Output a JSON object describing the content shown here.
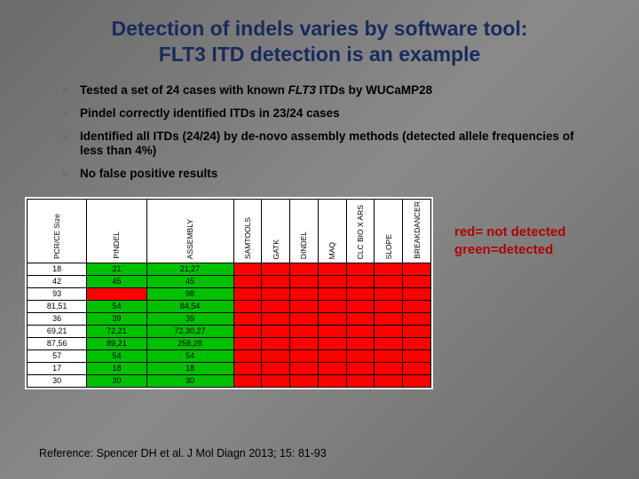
{
  "title_line1": "Detection of indels varies by software tool:",
  "title_line2": "FLT3 ITD detection is an example",
  "bullets": [
    {
      "pre": "Tested a set of 24 cases with known ",
      "it": "FLT3",
      "post": " ITDs by WUCaMP28"
    },
    {
      "pre": "Pindel correctly identified ITDs in 23/24 cases",
      "it": "",
      "post": ""
    },
    {
      "pre": "Identified all ITDs (24/24) by de-novo assembly methods (detected allele frequencies of less than 4%)",
      "it": "",
      "post": ""
    },
    {
      "pre": "No false positive results",
      "it": "",
      "post": ""
    }
  ],
  "table": {
    "headers": [
      "PCR/CE Size",
      "PINDEL",
      "ASSEMBLY",
      "SAMTOOLS",
      "GATK",
      "DINDEL",
      "MAQ",
      "CLC BIO X ARS",
      "SLOPE",
      "BREAKDANCER"
    ],
    "colors": {
      "green": "#00c000",
      "red": "#ff0000",
      "white": "#ffffff"
    },
    "rows": [
      {
        "cells": [
          "18",
          "21",
          "21,27",
          "",
          "",
          "",
          "",
          "",
          "",
          ""
        ],
        "cls": [
          "w",
          "g",
          "g",
          "r",
          "r",
          "r",
          "r",
          "r",
          "r",
          "r"
        ]
      },
      {
        "cells": [
          "42",
          "45",
          "45",
          "",
          "",
          "",
          "",
          "",
          "",
          ""
        ],
        "cls": [
          "w",
          "g",
          "g",
          "r",
          "r",
          "r",
          "r",
          "r",
          "r",
          "r"
        ]
      },
      {
        "cells": [
          "93",
          "",
          "98",
          "",
          "",
          "",
          "",
          "",
          "",
          ""
        ],
        "cls": [
          "w",
          "r",
          "g",
          "r",
          "r",
          "r",
          "r",
          "r",
          "r",
          "r"
        ]
      },
      {
        "cells": [
          "81,51",
          "54",
          "84,54",
          "",
          "",
          "",
          "",
          "",
          "",
          ""
        ],
        "cls": [
          "w",
          "g",
          "g",
          "r",
          "r",
          "r",
          "r",
          "r",
          "r",
          "r"
        ]
      },
      {
        "cells": [
          "36",
          "39",
          "39",
          "",
          "",
          "",
          "",
          "",
          "",
          ""
        ],
        "cls": [
          "w",
          "g",
          "g",
          "r",
          "r",
          "r",
          "r",
          "r",
          "r",
          "r"
        ]
      },
      {
        "cells": [
          "69,21",
          "72,21",
          "72,30,27",
          "",
          "",
          "",
          "",
          "",
          "",
          ""
        ],
        "cls": [
          "w",
          "g",
          "g",
          "r",
          "r",
          "r",
          "r",
          "r",
          "r",
          "r"
        ]
      },
      {
        "cells": [
          "87,56",
          "89,21",
          "258,28",
          "",
          "",
          "",
          "",
          "",
          "",
          ""
        ],
        "cls": [
          "w",
          "g",
          "g",
          "r",
          "r",
          "r",
          "r",
          "r",
          "r",
          "r"
        ]
      },
      {
        "cells": [
          "57",
          "54",
          "54",
          "",
          "",
          "",
          "",
          "",
          "",
          ""
        ],
        "cls": [
          "w",
          "g",
          "g",
          "r",
          "r",
          "r",
          "r",
          "r",
          "r",
          "r"
        ]
      },
      {
        "cells": [
          "17",
          "18",
          "18",
          "",
          "",
          "",
          "",
          "",
          "",
          ""
        ],
        "cls": [
          "w",
          "g",
          "g",
          "r",
          "r",
          "r",
          "r",
          "r",
          "r",
          "r"
        ]
      },
      {
        "cells": [
          "30",
          "30",
          "30",
          "",
          "",
          "",
          "",
          "",
          "",
          ""
        ],
        "cls": [
          "w",
          "g",
          "g",
          "r",
          "r",
          "r",
          "r",
          "r",
          "r",
          "r"
        ]
      }
    ]
  },
  "legend_line1": "red= not detected",
  "legend_line2": "green=detected",
  "reference": "Reference: Spencer DH et al.  J Mol Diagn 2013; 15: 81-93"
}
